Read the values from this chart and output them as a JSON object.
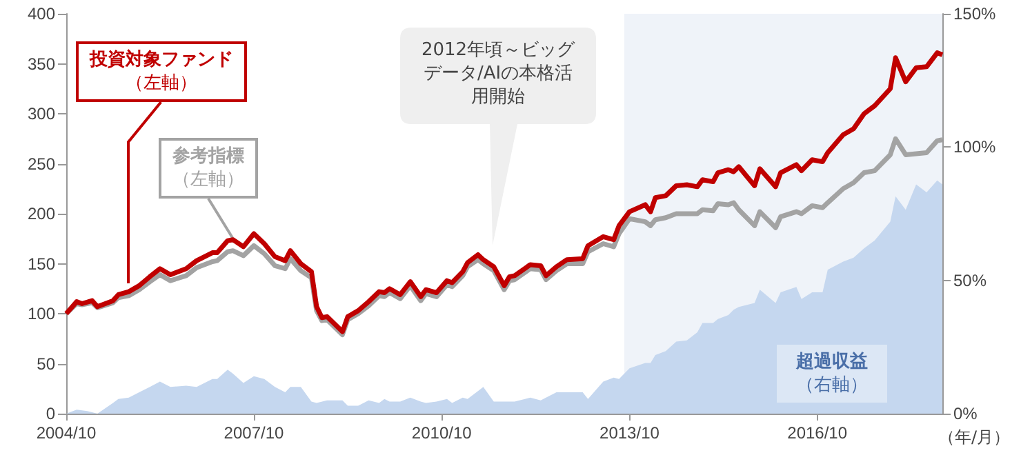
{
  "chart_data": {
    "type": "line",
    "xlabel": "（年/月）",
    "xlim": [
      "2004-10",
      "2018-10"
    ],
    "xticks": [
      {
        "value": "2004-10",
        "label": "2004/10"
      },
      {
        "value": "2007-10",
        "label": "2007/10"
      },
      {
        "value": "2010-10",
        "label": "2010/10"
      },
      {
        "value": "2013-10",
        "label": "2013/10"
      },
      {
        "value": "2016-10",
        "label": "2016/10"
      }
    ],
    "ylim": [
      0,
      400
    ],
    "yticks": [
      0,
      50,
      100,
      150,
      200,
      250,
      300,
      350,
      400
    ],
    "y2lim": [
      0,
      150
    ],
    "y2ticks": [
      {
        "value": 0,
        "label": "0%"
      },
      {
        "value": 50,
        "label": "50%"
      },
      {
        "value": 100,
        "label": "100%"
      },
      {
        "value": 150,
        "label": "150%"
      }
    ],
    "grid": false,
    "legend": false,
    "marker": "none",
    "line_style": "solid",
    "annotations": [
      "2012年頃～ビッグデータ/AIの本格活用開始"
    ],
    "bands": [
      {
        "axis": "x",
        "from": "2013-09",
        "to": "2018-10",
        "color": "#e4ebf5"
      }
    ],
    "series": [
      {
        "name": "超過収益（右軸）",
        "type": "area",
        "axis": "y2",
        "color": "#c5d7ef",
        "x": [
          "2004-10",
          "2004-12",
          "2005-02",
          "2005-04",
          "2005-07",
          "2005-08",
          "2005-10",
          "2005-12",
          "2006-02",
          "2006-04",
          "2006-06",
          "2006-09",
          "2006-11",
          "2007-02",
          "2007-03",
          "2007-05",
          "2007-06",
          "2007-08",
          "2007-10",
          "2007-12",
          "2008-02",
          "2008-04",
          "2008-05",
          "2008-07",
          "2008-09",
          "2008-10",
          "2008-12",
          "2009-03",
          "2009-04",
          "2009-06",
          "2009-08",
          "2009-10",
          "2009-11",
          "2009-12",
          "2010-02",
          "2010-04",
          "2010-06",
          "2010-07",
          "2010-09",
          "2010-11",
          "2010-12",
          "2011-02",
          "2011-03",
          "2011-05",
          "2011-06",
          "2011-08",
          "2011-10",
          "2011-11",
          "2011-12",
          "2012-03",
          "2012-05",
          "2012-06",
          "2012-08",
          "2012-10",
          "2013-01",
          "2013-02",
          "2013-05",
          "2013-07",
          "2013-08",
          "2013-10",
          "2014-01",
          "2014-02",
          "2014-03",
          "2014-05",
          "2014-07",
          "2014-09",
          "2014-11",
          "2014-12",
          "2015-02",
          "2015-03",
          "2015-05",
          "2015-06",
          "2015-07",
          "2015-10",
          "2015-11",
          "2016-02",
          "2016-03",
          "2016-06",
          "2016-07",
          "2016-09",
          "2016-11",
          "2016-12",
          "2017-03",
          "2017-05",
          "2017-07",
          "2017-09",
          "2017-12",
          "2018-01",
          "2018-03",
          "2018-05",
          "2018-07",
          "2018-09",
          "2018-10"
        ],
        "values": [
          0,
          1.5,
          1,
          0,
          4,
          5.5,
          6,
          8,
          10,
          12,
          10,
          10.5,
          10,
          13,
          13,
          16.5,
          15,
          11.5,
          14,
          13,
          10,
          8,
          10,
          10,
          4.5,
          4,
          5,
          5,
          3,
          3,
          5,
          4,
          5.5,
          4.5,
          4.5,
          6,
          4.5,
          4,
          4.5,
          5.5,
          4,
          6,
          5.5,
          8.5,
          10,
          4.5,
          4.5,
          4.5,
          4.5,
          6,
          5,
          6,
          8,
          8,
          8,
          5.5,
          12,
          13.5,
          13,
          17,
          19,
          19,
          22,
          23.5,
          27,
          27.5,
          30.5,
          34,
          34,
          35.5,
          37,
          39,
          40,
          41.5,
          46.5,
          41.5,
          45.5,
          47.5,
          43,
          45.5,
          45.5,
          54,
          57,
          58.5,
          62,
          65,
          72,
          81.5,
          76.5,
          86,
          83,
          87.5,
          86
        ]
      },
      {
        "name": "参考指標（左軸）",
        "color": "#a3a3a3",
        "x": [
          "2004-10",
          "2004-12",
          "2005-01",
          "2005-03",
          "2005-04",
          "2005-07",
          "2005-08",
          "2005-10",
          "2005-12",
          "2006-02",
          "2006-04",
          "2006-06",
          "2006-09",
          "2006-11",
          "2007-02",
          "2007-03",
          "2007-05",
          "2007-06",
          "2007-08",
          "2007-10",
          "2007-12",
          "2008-02",
          "2008-04",
          "2008-05",
          "2008-07",
          "2008-09",
          "2008-10",
          "2008-11",
          "2008-12",
          "2009-03",
          "2009-04",
          "2009-06",
          "2009-08",
          "2009-10",
          "2009-11",
          "2009-12",
          "2010-02",
          "2010-04",
          "2010-06",
          "2010-07",
          "2010-09",
          "2010-11",
          "2010-12",
          "2011-02",
          "2011-03",
          "2011-05",
          "2011-06",
          "2011-08",
          "2011-10",
          "2011-11",
          "2011-12",
          "2012-03",
          "2012-05",
          "2012-06",
          "2012-08",
          "2012-10",
          "2013-01",
          "2013-02",
          "2013-05",
          "2013-07",
          "2013-08",
          "2013-10",
          "2014-01",
          "2014-02",
          "2014-03",
          "2014-05",
          "2014-07",
          "2014-09",
          "2014-11",
          "2014-12",
          "2015-02",
          "2015-03",
          "2015-05",
          "2015-06",
          "2015-07",
          "2015-10",
          "2015-11",
          "2016-02",
          "2016-03",
          "2016-06",
          "2016-07",
          "2016-09",
          "2016-11",
          "2016-12",
          "2017-03",
          "2017-05",
          "2017-07",
          "2017-09",
          "2017-12",
          "2018-01",
          "2018-03",
          "2018-05",
          "2018-07",
          "2018-09",
          "2018-10"
        ],
        "values": [
          100,
          110,
          109,
          111,
          106,
          111,
          116,
          118,
          124,
          132,
          139,
          133,
          138,
          146,
          152,
          153,
          162,
          163,
          158,
          168,
          160,
          148,
          145,
          155,
          143,
          136,
          103,
          93,
          94,
          79,
          94,
          100,
          108,
          118,
          117,
          121,
          115,
          128,
          113,
          120,
          117,
          129,
          127,
          138,
          147,
          154,
          150,
          143,
          124,
          133,
          134,
          145,
          144,
          134,
          143,
          150,
          150,
          162,
          170,
          167,
          180,
          195,
          192,
          188,
          194,
          196,
          200,
          200,
          200,
          204,
          203,
          210,
          209,
          211,
          204,
          188,
          202,
          186,
          197,
          202,
          200,
          208,
          206,
          211,
          225,
          231,
          241,
          243,
          259,
          275,
          259,
          260,
          261,
          273,
          274
        ]
      },
      {
        "name": "投資対象ファンド（左軸）",
        "color": "#c00000",
        "x": [
          "2004-10",
          "2004-12",
          "2005-01",
          "2005-03",
          "2005-04",
          "2005-07",
          "2005-08",
          "2005-10",
          "2005-12",
          "2006-02",
          "2006-04",
          "2006-06",
          "2006-09",
          "2006-11",
          "2007-02",
          "2007-03",
          "2007-05",
          "2007-06",
          "2007-08",
          "2007-10",
          "2007-12",
          "2008-02",
          "2008-04",
          "2008-05",
          "2008-07",
          "2008-09",
          "2008-10",
          "2008-11",
          "2008-12",
          "2009-03",
          "2009-04",
          "2009-06",
          "2009-08",
          "2009-10",
          "2009-11",
          "2009-12",
          "2010-02",
          "2010-04",
          "2010-06",
          "2010-07",
          "2010-09",
          "2010-11",
          "2010-12",
          "2011-02",
          "2011-03",
          "2011-05",
          "2011-06",
          "2011-08",
          "2011-10",
          "2011-11",
          "2011-12",
          "2012-03",
          "2012-05",
          "2012-06",
          "2012-08",
          "2012-10",
          "2013-01",
          "2013-02",
          "2013-05",
          "2013-07",
          "2013-08",
          "2013-10",
          "2014-01",
          "2014-02",
          "2014-03",
          "2014-05",
          "2014-07",
          "2014-09",
          "2014-11",
          "2014-12",
          "2015-02",
          "2015-03",
          "2015-05",
          "2015-06",
          "2015-07",
          "2015-10",
          "2015-11",
          "2016-02",
          "2016-03",
          "2016-06",
          "2016-07",
          "2016-09",
          "2016-11",
          "2016-12",
          "2017-03",
          "2017-05",
          "2017-07",
          "2017-09",
          "2017-12",
          "2018-01",
          "2018-03",
          "2018-05",
          "2018-07",
          "2018-09",
          "2018-10"
        ],
        "values": [
          100,
          112,
          110,
          113,
          107,
          113,
          119,
          122,
          128,
          137,
          145,
          139,
          145,
          153,
          161,
          161,
          173,
          174,
          167,
          180,
          170,
          157,
          153,
          163,
          150,
          142,
          107,
          96,
          97,
          82,
          97,
          103,
          112,
          122,
          121,
          125,
          119,
          132,
          117,
          124,
          121,
          133,
          131,
          142,
          151,
          159,
          154,
          147,
          128,
          137,
          138,
          149,
          148,
          138,
          147,
          154,
          155,
          168,
          177,
          174,
          188,
          202,
          209,
          202,
          216,
          218,
          228,
          229,
          227,
          234,
          232,
          241,
          244,
          242,
          247,
          228,
          245,
          227,
          241,
          249,
          243,
          254,
          252,
          261,
          279,
          285,
          300,
          308,
          325,
          356,
          332,
          346,
          347,
          361,
          359
        ]
      }
    ]
  }
}
